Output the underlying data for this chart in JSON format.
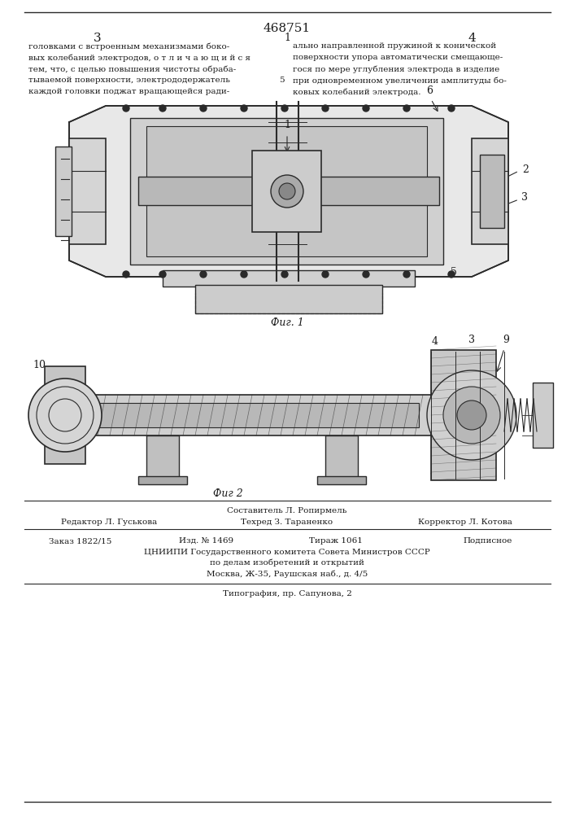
{
  "patent_number": "468751",
  "page_left": "3",
  "page_right": "4",
  "text_left": "головками с встроенным механизмами боко-\nвых колебаний электродов, о т л и ч а ю щ и й с я\nтем, что, с целью повышения чистоты обраба-\nтываемой поверхности, электрододержатель\nкаждой головки поджат вращающейся ради-",
  "text_right": "ально направленной пружиной к конической\nповерхности упора автоматически смещающе-\nгося по мере углубления электрода в изделие\nпри одновременном увеличении амплитуды бо-\nковых колебаний электрода.",
  "fig1_label": "Фиг. 1",
  "fig2_label": "Фиг 2",
  "footer_compiler": "Составитель Л. Ропирмель",
  "footer_editor": "Редактор Л. Гуськова",
  "footer_tech": "Техред З. Тараненко",
  "footer_corrector": "Корректор Л. Котова",
  "footer_order": "Заказ 1822/15",
  "footer_izd": "Изд. № 1469",
  "footer_tirazh": "Тираж 1061",
  "footer_podp": "Подписное",
  "footer_tsniipi": "ЦНИИПИ Государственного комитета Совета Министров СССР",
  "footer_dela": "по делам изобретений и открытий",
  "footer_moscow": "Москва, Ж-35, Раушская наб., д. 4/5",
  "footer_tipograf": "Типография, пр. Сапунова, 2",
  "bg_color": "#ffffff",
  "text_color": "#1a1a1a",
  "line_color": "#2a2a2a"
}
